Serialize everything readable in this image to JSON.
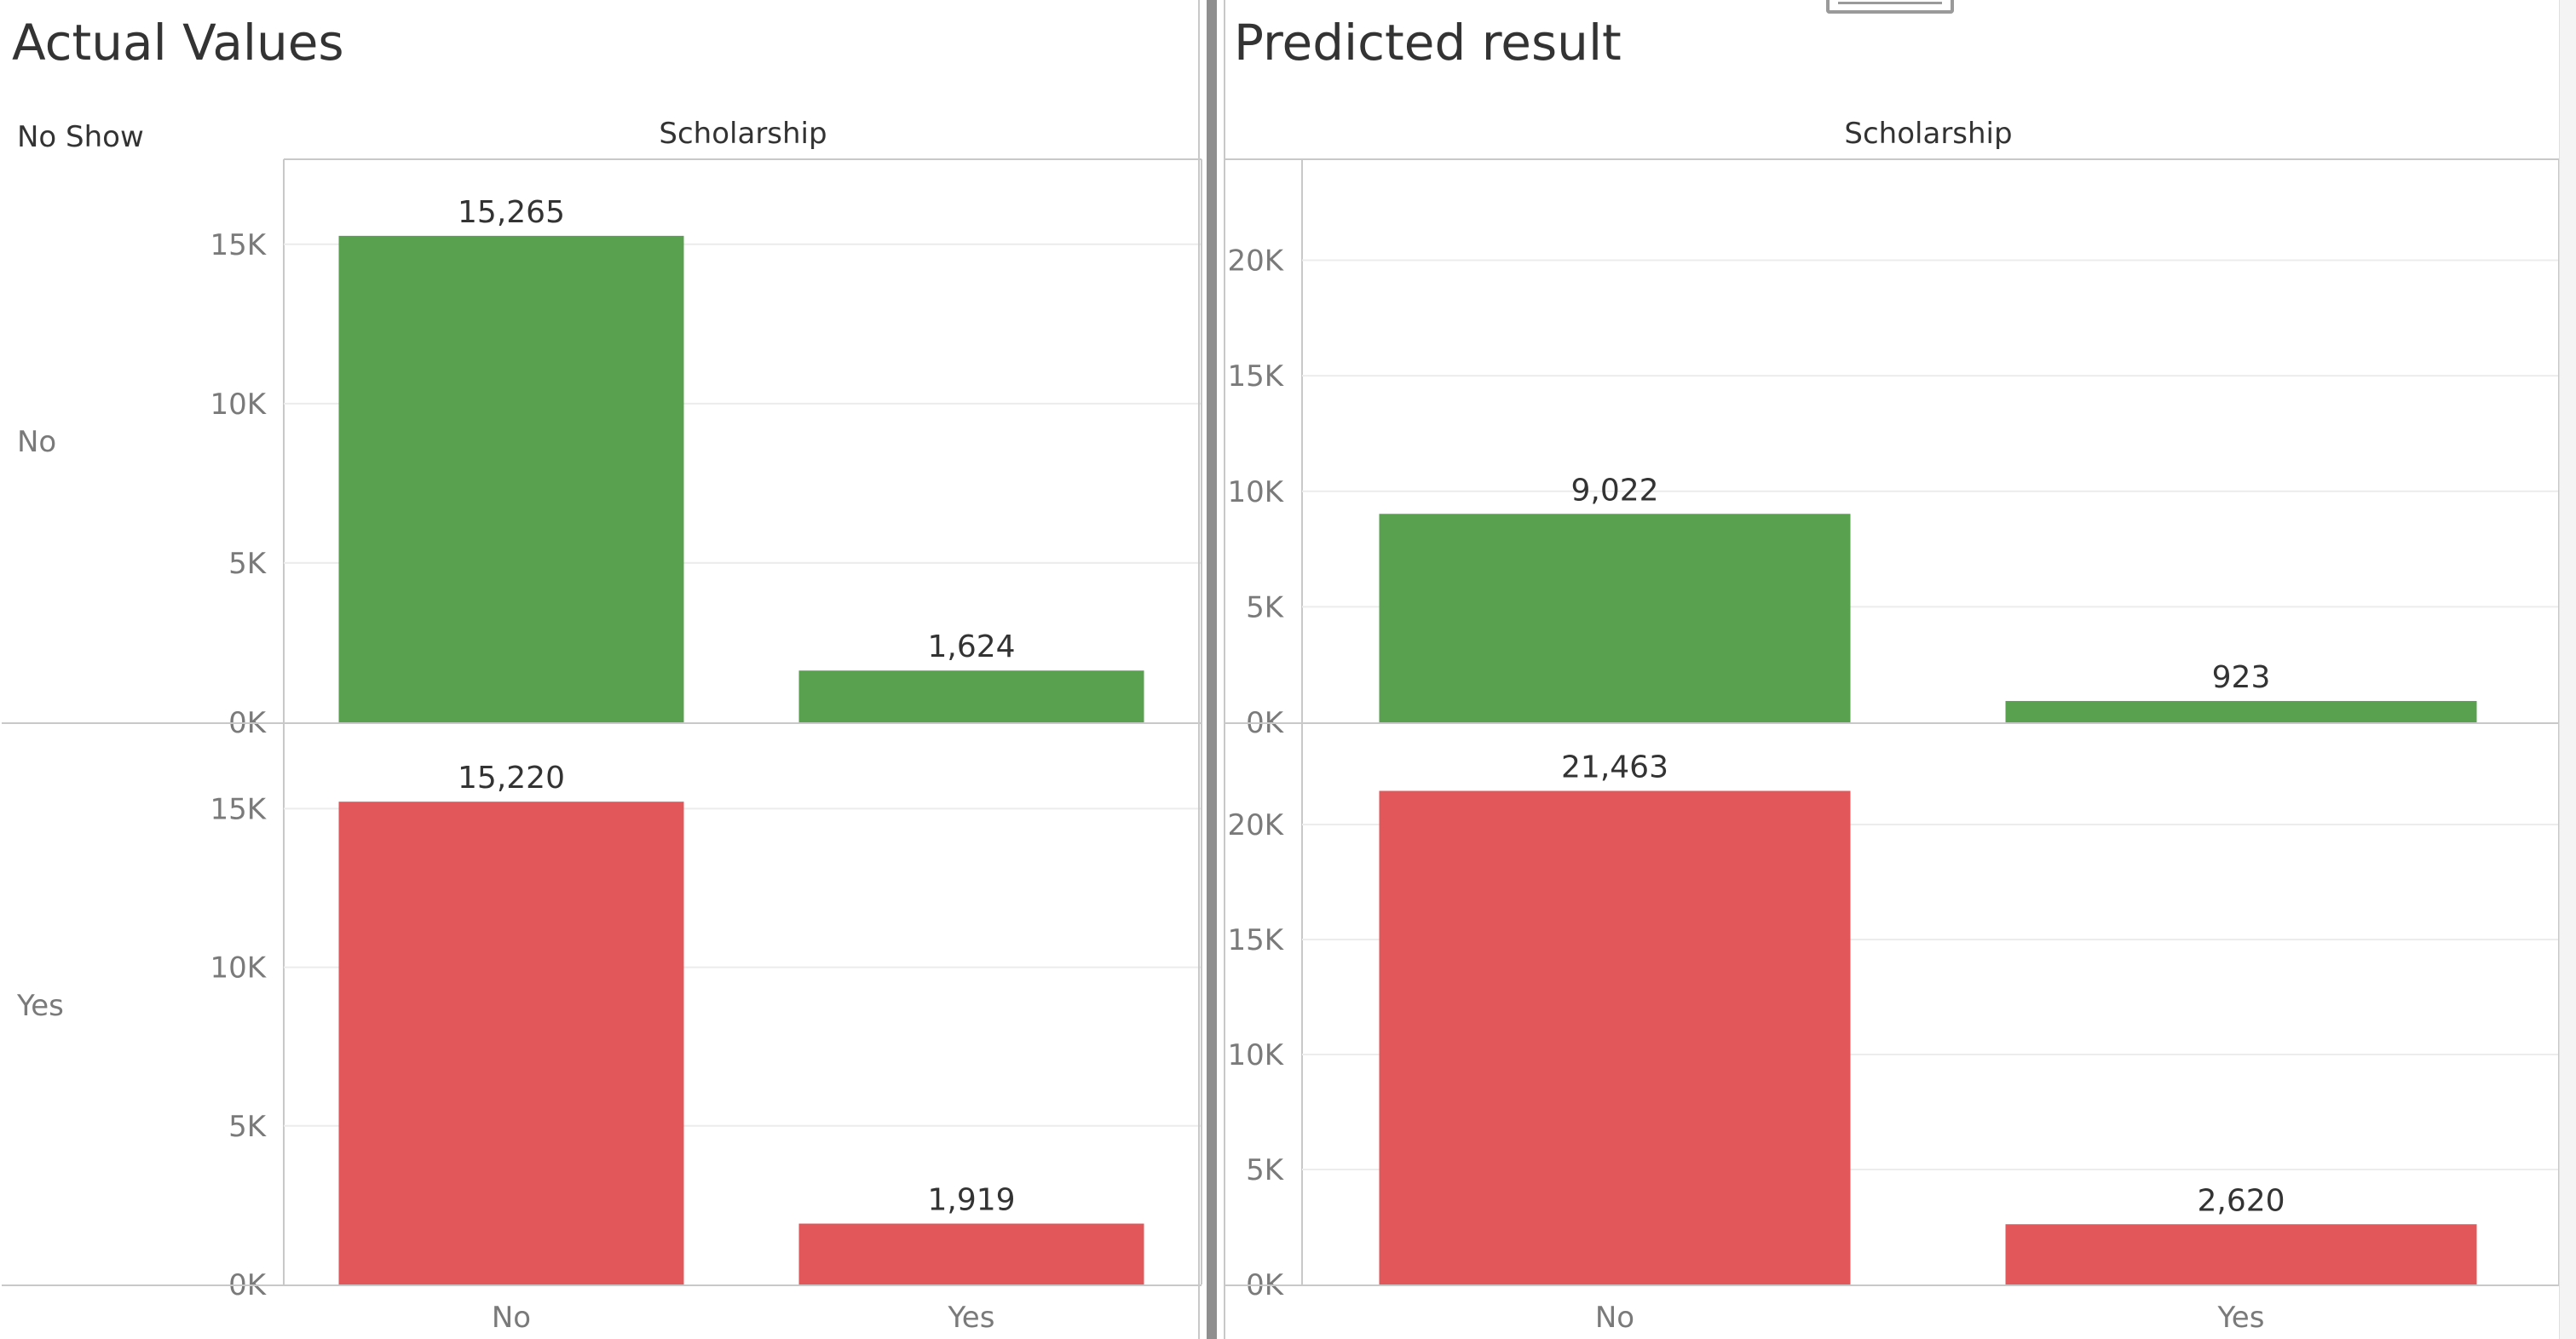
{
  "colors": {
    "not_no_show": "#59a14f",
    "no_show": "#e1575a",
    "axis_text": "#7a7a7a",
    "label_text": "#333333",
    "title_text": "#333333",
    "gridline": "#ececec",
    "border": "#c8c8c8"
  },
  "chart_data": [
    {
      "type": "bar",
      "title": "Actual Values",
      "row_dimension": "No Show",
      "column_dimension": "Scholarship",
      "categories": [
        "No",
        "Yes"
      ],
      "series": [
        {
          "name": "No",
          "values": [
            15265,
            1624
          ]
        },
        {
          "name": "Yes",
          "values": [
            15220,
            1919
          ]
        }
      ],
      "data_labels": [
        [
          "15,265",
          "1,624"
        ],
        [
          "15,220",
          "1,919"
        ]
      ],
      "y_ticks": [
        0,
        5000,
        10000,
        15000
      ],
      "y_tick_labels": [
        "0K",
        "5K",
        "10K",
        "15K"
      ],
      "ylim": [
        0,
        17400
      ],
      "grid": true
    },
    {
      "type": "bar",
      "title": "Predicted result",
      "row_dimension": "",
      "column_dimension": "Scholarship",
      "categories": [
        "No",
        "Yes"
      ],
      "series": [
        {
          "name": "No",
          "values": [
            9022,
            923
          ]
        },
        {
          "name": "Yes",
          "values": [
            21463,
            2620
          ]
        }
      ],
      "data_labels": [
        [
          "9,022",
          "923"
        ],
        [
          "21,463",
          "2,620"
        ]
      ],
      "y_ticks": [
        0,
        5000,
        10000,
        15000,
        20000
      ],
      "y_tick_labels": [
        "0K",
        "5K",
        "10K",
        "15K",
        "20K"
      ],
      "ylim": [
        0,
        24000
      ],
      "grid": true
    }
  ]
}
